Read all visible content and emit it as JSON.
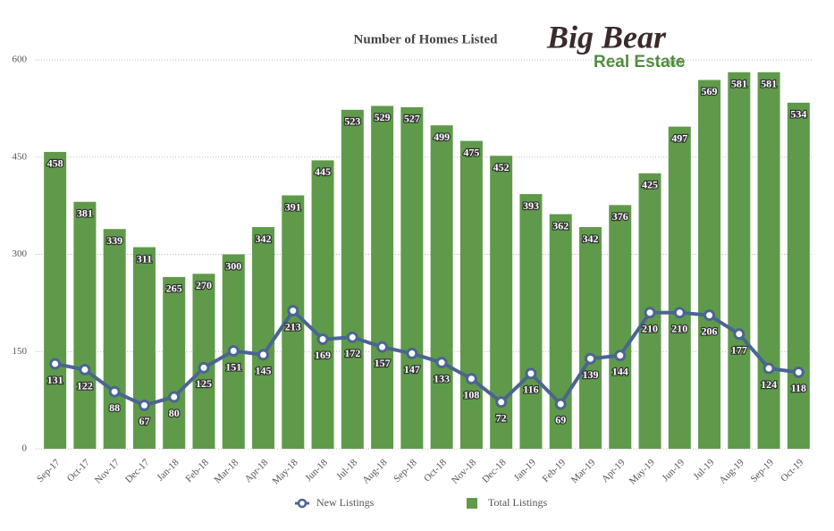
{
  "chart_data": {
    "type": "bar",
    "title": "Number of Homes Listed",
    "logo": {
      "name": "Big Bear",
      "subtitle": "Real Estate",
      "suffix": ".com"
    },
    "categories": [
      "Sep-17",
      "Oct-17",
      "Nov-17",
      "Dec-17",
      "Jan-18",
      "Feb-18",
      "Mar-18",
      "Apr-18",
      "May-18",
      "Jun-18",
      "Jul-18",
      "Aug-18",
      "Sep-18",
      "Oct-18",
      "Nov-18",
      "Dec-18",
      "Jan-19",
      "Feb-19",
      "Mar-19",
      "Apr-19",
      "May-19",
      "Jun-19",
      "Jul-19",
      "Aug-19",
      "Sep-19",
      "Oct-19"
    ],
    "series": [
      {
        "name": "New Listings",
        "type": "line",
        "color": "#4a6590",
        "values": [
          131,
          122,
          88,
          67,
          80,
          125,
          151,
          145,
          213,
          169,
          172,
          157,
          147,
          133,
          108,
          72,
          116,
          69,
          139,
          144,
          210,
          210,
          206,
          177,
          124,
          118
        ]
      },
      {
        "name": "Total Listings",
        "type": "bar",
        "color": "#5f9a4a",
        "values": [
          458,
          381,
          339,
          311,
          265,
          270,
          300,
          342,
          391,
          445,
          523,
          529,
          527,
          499,
          475,
          452,
          393,
          362,
          342,
          376,
          425,
          497,
          569,
          581,
          581,
          534
        ]
      }
    ],
    "ylim": [
      0,
      600
    ],
    "yticks": [
      0,
      150,
      300,
      450,
      600
    ],
    "grid": true,
    "legend": "bottom"
  }
}
